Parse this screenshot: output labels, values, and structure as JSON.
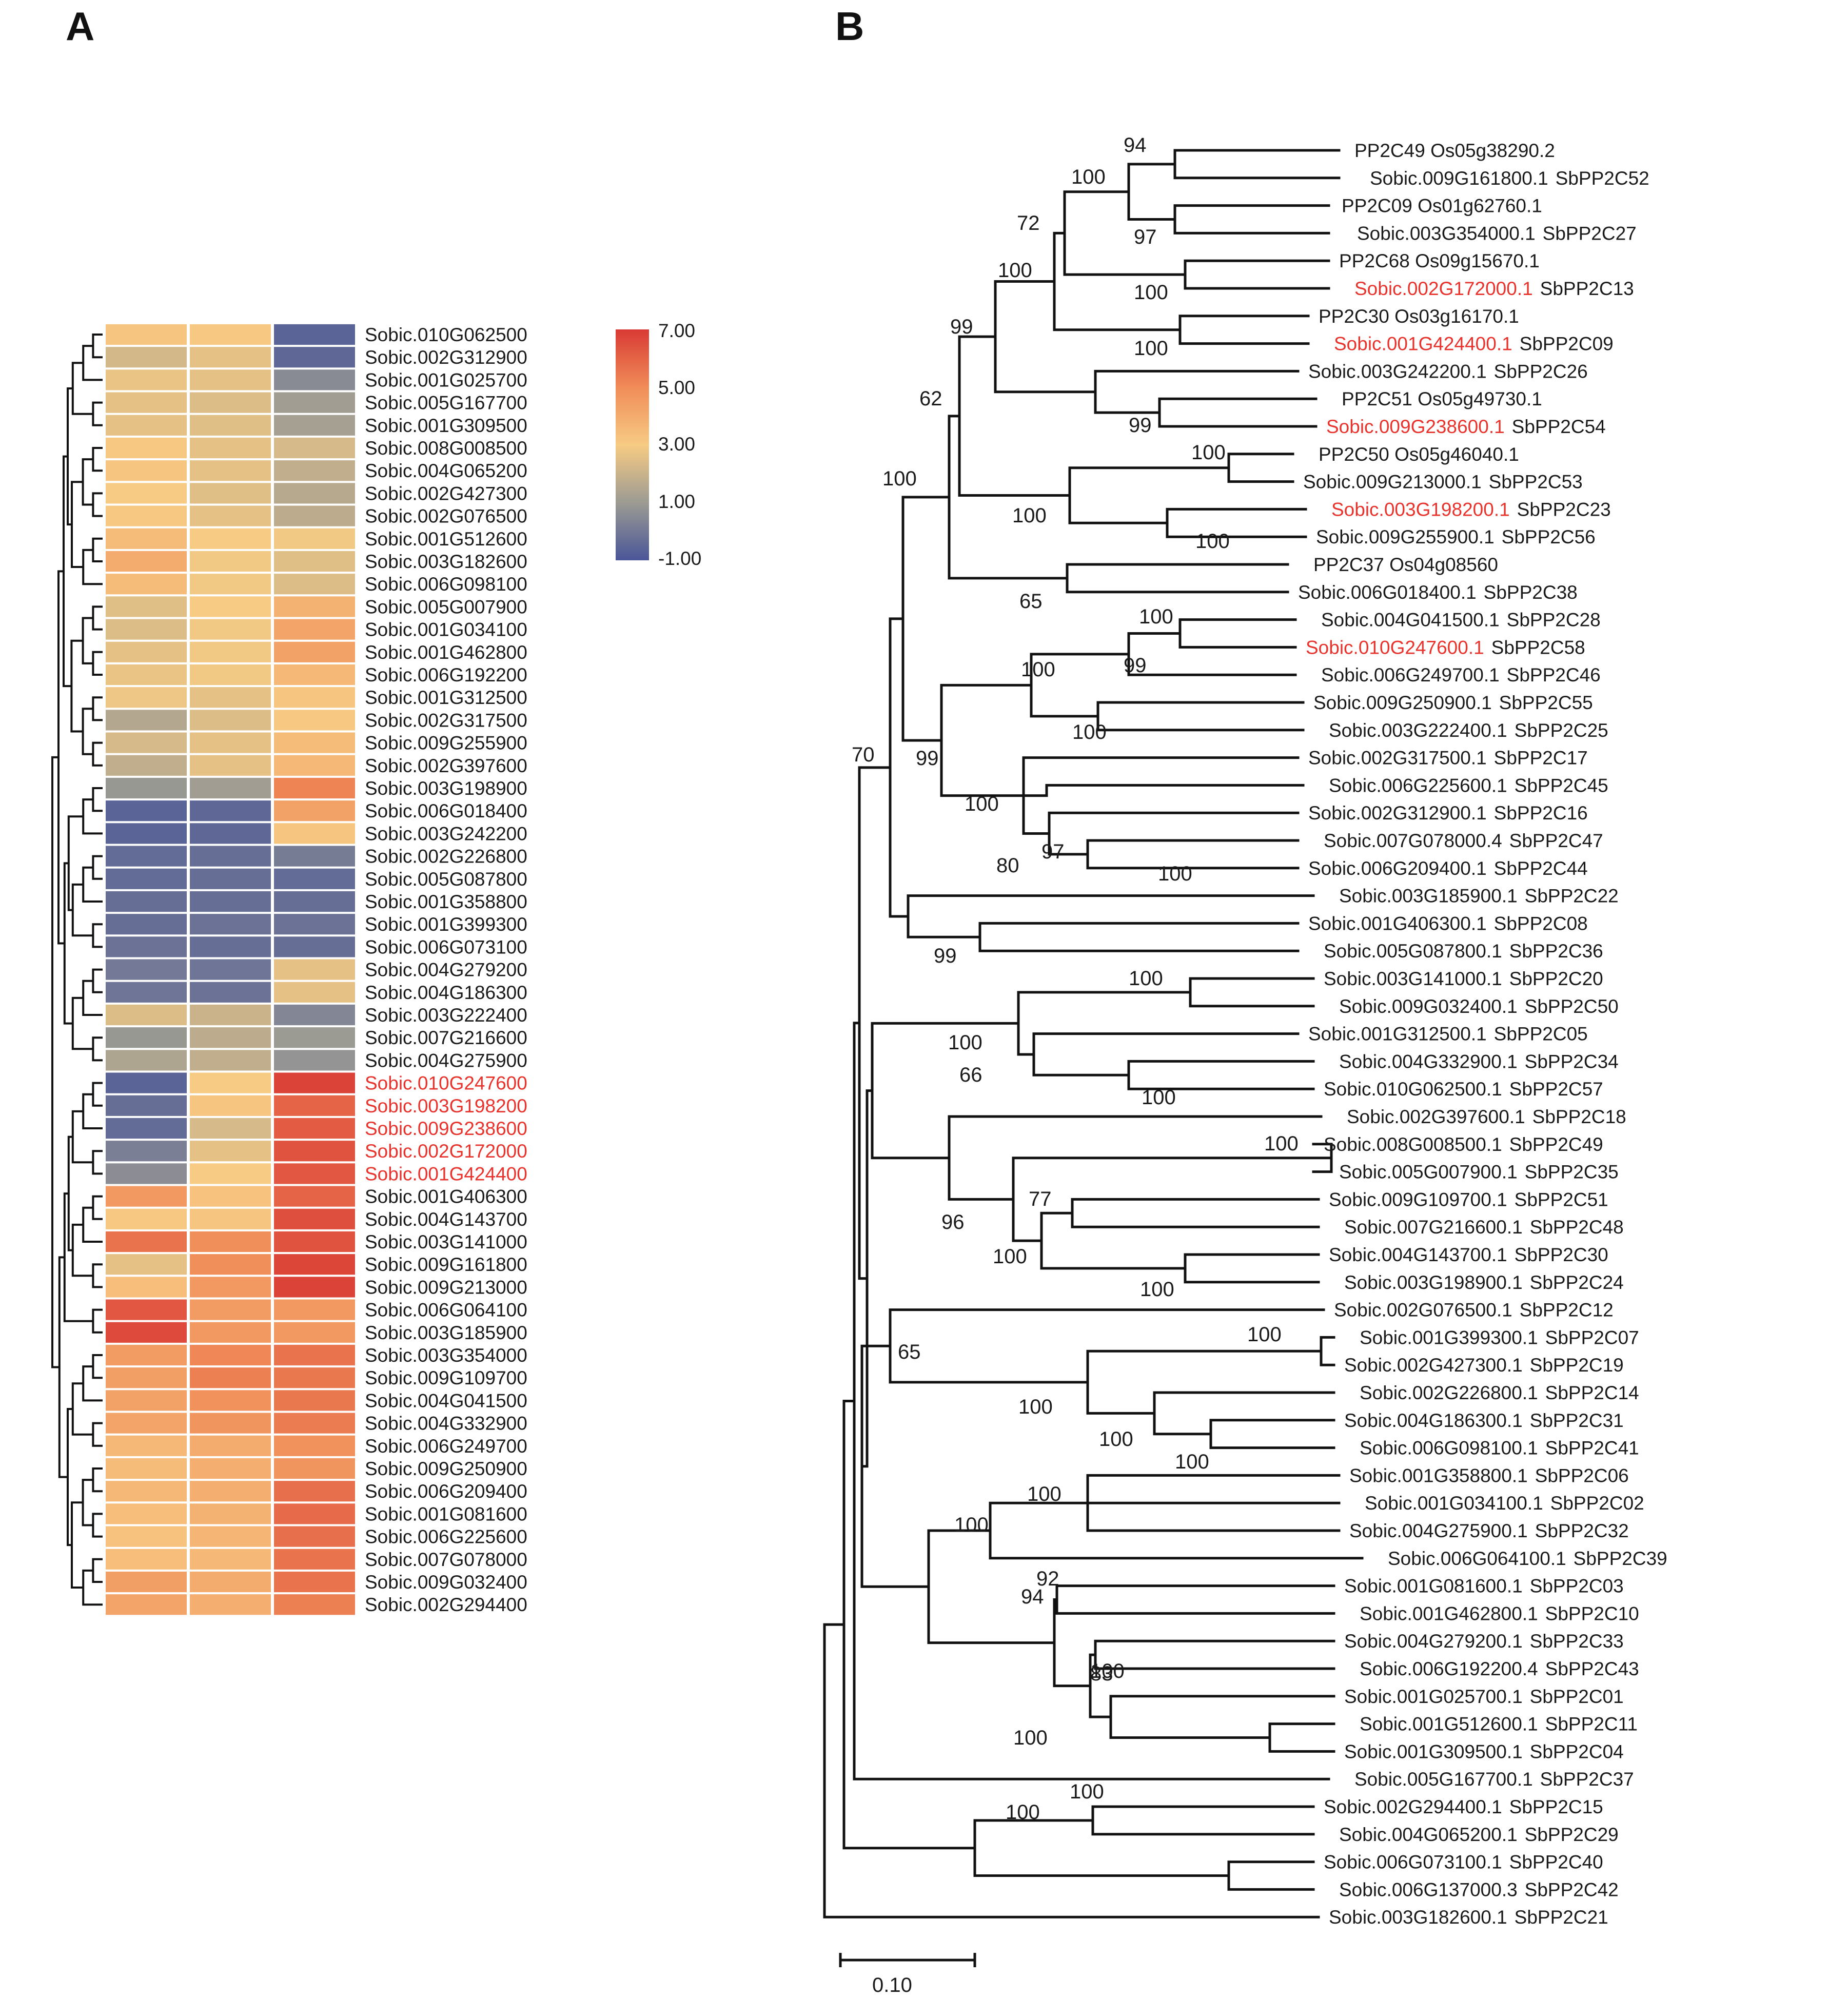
{
  "panels": {
    "a": "A",
    "b": "B"
  },
  "heatmap": {
    "color_scale": {
      "min": -1.0,
      "max": 7.0,
      "ticks": [
        "7.00",
        "5.00",
        "3.00",
        "1.00",
        "-1.00"
      ],
      "stops": [
        {
          "v": -1.0,
          "c": "#4a5698"
        },
        {
          "v": 1.0,
          "c": "#9c9b93"
        },
        {
          "v": 3.0,
          "c": "#f7cb83"
        },
        {
          "v": 5.0,
          "c": "#f08c58"
        },
        {
          "v": 7.0,
          "c": "#d93a34"
        }
      ],
      "legend_colors": [
        "#d93a34",
        "#f08c58",
        "#f7cb83",
        "#9c9b93",
        "#4a5698"
      ]
    },
    "highlight_color": "#e8322c",
    "rows": [
      {
        "gene": "Sobic.010G062500",
        "values": [
          3.2,
          3.1,
          -0.6
        ],
        "hl": false
      },
      {
        "gene": "Sobic.002G312900",
        "values": [
          2.2,
          2.6,
          -0.5
        ],
        "hl": false
      },
      {
        "gene": "Sobic.001G025700",
        "values": [
          2.7,
          2.6,
          0.5
        ],
        "hl": false
      },
      {
        "gene": "Sobic.005G167700",
        "values": [
          2.6,
          2.4,
          1.1
        ],
        "hl": false
      },
      {
        "gene": "Sobic.001G309500",
        "values": [
          2.6,
          2.5,
          1.2
        ],
        "hl": false
      },
      {
        "gene": "Sobic.008G008500",
        "values": [
          3.1,
          2.6,
          2.3
        ],
        "hl": false
      },
      {
        "gene": "Sobic.004G065200",
        "values": [
          3.2,
          2.6,
          1.8
        ],
        "hl": false
      },
      {
        "gene": "Sobic.002G427300",
        "values": [
          3.0,
          2.5,
          1.6
        ],
        "hl": false
      },
      {
        "gene": "Sobic.002G076500",
        "values": [
          3.1,
          2.6,
          1.7
        ],
        "hl": false
      },
      {
        "gene": "Sobic.001G512600",
        "values": [
          3.5,
          3.0,
          2.9
        ],
        "hl": false
      },
      {
        "gene": "Sobic.003G182600",
        "values": [
          4.0,
          2.9,
          2.5
        ],
        "hl": false
      },
      {
        "gene": "Sobic.006G098100",
        "values": [
          3.5,
          2.9,
          2.4
        ],
        "hl": false
      },
      {
        "gene": "Sobic.005G007900",
        "values": [
          2.5,
          3.0,
          3.8
        ],
        "hl": false
      },
      {
        "gene": "Sobic.001G034100",
        "values": [
          2.4,
          2.9,
          4.2
        ],
        "hl": false
      },
      {
        "gene": "Sobic.001G462800",
        "values": [
          2.6,
          2.9,
          4.3
        ],
        "hl": false
      },
      {
        "gene": "Sobic.006G192200",
        "values": [
          2.7,
          2.9,
          3.6
        ],
        "hl": false
      },
      {
        "gene": "Sobic.001G312500",
        "values": [
          2.8,
          2.6,
          3.2
        ],
        "hl": false
      },
      {
        "gene": "Sobic.002G317500",
        "values": [
          1.5,
          2.4,
          3.1
        ],
        "hl": false
      },
      {
        "gene": "Sobic.009G255900",
        "values": [
          2.3,
          2.6,
          3.5
        ],
        "hl": false
      },
      {
        "gene": "Sobic.002G397600",
        "values": [
          1.8,
          2.6,
          3.6
        ],
        "hl": false
      },
      {
        "gene": "Sobic.003G198900",
        "values": [
          0.9,
          1.1,
          5.2
        ],
        "hl": false
      },
      {
        "gene": "Sobic.006G018400",
        "values": [
          -0.6,
          -0.5,
          4.3
        ],
        "hl": false
      },
      {
        "gene": "Sobic.003G242200",
        "values": [
          -0.6,
          -0.5,
          3.2
        ],
        "hl": false
      },
      {
        "gene": "Sobic.002G226800",
        "values": [
          -0.4,
          -0.3,
          0.1
        ],
        "hl": false
      },
      {
        "gene": "Sobic.005G087800",
        "values": [
          -0.4,
          -0.3,
          -0.4
        ],
        "hl": false
      },
      {
        "gene": "Sobic.001G358800",
        "values": [
          -0.3,
          -0.3,
          -0.3
        ],
        "hl": false
      },
      {
        "gene": "Sobic.001G399300",
        "values": [
          -0.3,
          -0.2,
          -0.2
        ],
        "hl": false
      },
      {
        "gene": "Sobic.006G073100",
        "values": [
          -0.2,
          -0.3,
          -0.3
        ],
        "hl": false
      },
      {
        "gene": "Sobic.004G279200",
        "values": [
          0.0,
          -0.1,
          2.6
        ],
        "hl": false
      },
      {
        "gene": "Sobic.004G186300",
        "values": [
          -0.1,
          -0.2,
          2.6
        ],
        "hl": false
      },
      {
        "gene": "Sobic.003G222400",
        "values": [
          2.4,
          2.0,
          0.4
        ],
        "hl": false
      },
      {
        "gene": "Sobic.007G216600",
        "values": [
          0.9,
          1.7,
          1.0
        ],
        "hl": false
      },
      {
        "gene": "Sobic.004G275900",
        "values": [
          1.4,
          1.8,
          0.8
        ],
        "hl": false
      },
      {
        "gene": "Sobic.010G247600",
        "values": [
          -0.6,
          3.0,
          6.8
        ],
        "hl": true
      },
      {
        "gene": "Sobic.003G198200",
        "values": [
          -0.3,
          3.2,
          6.0
        ],
        "hl": true
      },
      {
        "gene": "Sobic.009G238600",
        "values": [
          -0.4,
          2.3,
          6.2
        ],
        "hl": true
      },
      {
        "gene": "Sobic.002G172000",
        "values": [
          0.2,
          2.6,
          6.4
        ],
        "hl": true
      },
      {
        "gene": "Sobic.001G424400",
        "values": [
          0.6,
          3.0,
          6.3
        ],
        "hl": true
      },
      {
        "gene": "Sobic.001G406300",
        "values": [
          4.6,
          3.3,
          6.0
        ],
        "hl": false
      },
      {
        "gene": "Sobic.004G143700",
        "values": [
          3.1,
          3.2,
          6.5
        ],
        "hl": false
      },
      {
        "gene": "Sobic.003G141000",
        "values": [
          5.6,
          4.9,
          6.4
        ],
        "hl": false
      },
      {
        "gene": "Sobic.009G161800",
        "values": [
          2.6,
          4.9,
          6.7
        ],
        "hl": false
      },
      {
        "gene": "Sobic.009G213000",
        "values": [
          3.4,
          4.6,
          6.8
        ],
        "hl": false
      },
      {
        "gene": "Sobic.006G064100",
        "values": [
          6.3,
          4.5,
          4.6
        ],
        "hl": false
      },
      {
        "gene": "Sobic.003G185900",
        "values": [
          6.6,
          4.6,
          4.6
        ],
        "hl": false
      },
      {
        "gene": "Sobic.003G354000",
        "values": [
          4.5,
          5.1,
          5.6
        ],
        "hl": false
      },
      {
        "gene": "Sobic.009G109700",
        "values": [
          4.4,
          5.3,
          5.5
        ],
        "hl": false
      },
      {
        "gene": "Sobic.004G041500",
        "values": [
          4.3,
          4.8,
          5.5
        ],
        "hl": false
      },
      {
        "gene": "Sobic.004G332900",
        "values": [
          4.2,
          4.7,
          5.4
        ],
        "hl": false
      },
      {
        "gene": "Sobic.006G249700",
        "values": [
          3.6,
          4.0,
          4.8
        ],
        "hl": false
      },
      {
        "gene": "Sobic.009G250900",
        "values": [
          3.5,
          3.9,
          4.7
        ],
        "hl": false
      },
      {
        "gene": "Sobic.006G209400",
        "values": [
          3.6,
          3.9,
          5.7
        ],
        "hl": false
      },
      {
        "gene": "Sobic.001G081600",
        "values": [
          3.4,
          3.8,
          5.8
        ],
        "hl": false
      },
      {
        "gene": "Sobic.006G225600",
        "values": [
          3.3,
          3.7,
          5.7
        ],
        "hl": false
      },
      {
        "gene": "Sobic.007G078000",
        "values": [
          3.4,
          3.6,
          5.6
        ],
        "hl": false
      },
      {
        "gene": "Sobic.009G032400",
        "values": [
          4.4,
          4.0,
          5.6
        ],
        "hl": false
      },
      {
        "gene": "Sobic.002G294400",
        "values": [
          4.2,
          3.9,
          5.3
        ],
        "hl": false
      }
    ]
  },
  "tree": {
    "highlight_color": "#e8322c",
    "leaves": [
      {
        "id": "PP2C49 Os05g38290.2",
        "sb": "",
        "hl": false
      },
      {
        "id": "Sobic.009G161800.1",
        "sb": "SbPP2C52",
        "hl": false
      },
      {
        "id": "PP2C09 Os01g62760.1",
        "sb": "",
        "hl": false
      },
      {
        "id": "Sobic.003G354000.1",
        "sb": "SbPP2C27",
        "hl": false
      },
      {
        "id": "PP2C68 Os09g15670.1",
        "sb": "",
        "hl": false
      },
      {
        "id": "Sobic.002G172000.1",
        "sb": "SbPP2C13",
        "hl": true
      },
      {
        "id": "PP2C30 Os03g16170.1",
        "sb": "",
        "hl": false
      },
      {
        "id": "Sobic.001G424400.1",
        "sb": "SbPP2C09",
        "hl": true
      },
      {
        "id": "Sobic.003G242200.1",
        "sb": "SbPP2C26",
        "hl": false
      },
      {
        "id": "PP2C51 Os05g49730.1",
        "sb": "",
        "hl": false
      },
      {
        "id": "Sobic.009G238600.1",
        "sb": "SbPP2C54",
        "hl": true
      },
      {
        "id": "PP2C50 Os05g46040.1",
        "sb": "",
        "hl": false
      },
      {
        "id": "Sobic.009G213000.1",
        "sb": "SbPP2C53",
        "hl": false
      },
      {
        "id": "Sobic.003G198200.1",
        "sb": "SbPP2C23",
        "hl": true
      },
      {
        "id": "Sobic.009G255900.1",
        "sb": "SbPP2C56",
        "hl": false
      },
      {
        "id": "PP2C37 Os04g08560",
        "sb": "",
        "hl": false
      },
      {
        "id": "Sobic.006G018400.1",
        "sb": "SbPP2C38",
        "hl": false
      },
      {
        "id": "Sobic.004G041500.1",
        "sb": "SbPP2C28",
        "hl": false
      },
      {
        "id": "Sobic.010G247600.1",
        "sb": "SbPP2C58",
        "hl": true
      },
      {
        "id": "Sobic.006G249700.1",
        "sb": "SbPP2C46",
        "hl": false
      },
      {
        "id": "Sobic.009G250900.1",
        "sb": "SbPP2C55",
        "hl": false
      },
      {
        "id": "Sobic.003G222400.1",
        "sb": "SbPP2C25",
        "hl": false
      },
      {
        "id": "Sobic.002G317500.1",
        "sb": "SbPP2C17",
        "hl": false
      },
      {
        "id": "Sobic.006G225600.1",
        "sb": "SbPP2C45",
        "hl": false
      },
      {
        "id": "Sobic.002G312900.1",
        "sb": "SbPP2C16",
        "hl": false
      },
      {
        "id": "Sobic.007G078000.4",
        "sb": "SbPP2C47",
        "hl": false
      },
      {
        "id": "Sobic.006G209400.1",
        "sb": "SbPP2C44",
        "hl": false
      },
      {
        "id": "Sobic.003G185900.1",
        "sb": "SbPP2C22",
        "hl": false
      },
      {
        "id": "Sobic.001G406300.1",
        "sb": "SbPP2C08",
        "hl": false
      },
      {
        "id": "Sobic.005G087800.1",
        "sb": "SbPP2C36",
        "hl": false
      },
      {
        "id": "Sobic.003G141000.1",
        "sb": "SbPP2C20",
        "hl": false
      },
      {
        "id": "Sobic.009G032400.1",
        "sb": "SbPP2C50",
        "hl": false
      },
      {
        "id": "Sobic.001G312500.1",
        "sb": "SbPP2C05",
        "hl": false
      },
      {
        "id": "Sobic.004G332900.1",
        "sb": "SbPP2C34",
        "hl": false
      },
      {
        "id": "Sobic.010G062500.1",
        "sb": "SbPP2C57",
        "hl": false
      },
      {
        "id": "Sobic.002G397600.1",
        "sb": "SbPP2C18",
        "hl": false
      },
      {
        "id": "Sobic.008G008500.1",
        "sb": "SbPP2C49",
        "hl": false
      },
      {
        "id": "Sobic.005G007900.1",
        "sb": "SbPP2C35",
        "hl": false
      },
      {
        "id": "Sobic.009G109700.1",
        "sb": "SbPP2C51",
        "hl": false
      },
      {
        "id": "Sobic.007G216600.1",
        "sb": "SbPP2C48",
        "hl": false
      },
      {
        "id": "Sobic.004G143700.1",
        "sb": "SbPP2C30",
        "hl": false
      },
      {
        "id": "Sobic.003G198900.1",
        "sb": "SbPP2C24",
        "hl": false
      },
      {
        "id": "Sobic.002G076500.1",
        "sb": "SbPP2C12",
        "hl": false
      },
      {
        "id": "Sobic.001G399300.1",
        "sb": "SbPP2C07",
        "hl": false
      },
      {
        "id": "Sobic.002G427300.1",
        "sb": "SbPP2C19",
        "hl": false
      },
      {
        "id": "Sobic.002G226800.1",
        "sb": "SbPP2C14",
        "hl": false
      },
      {
        "id": "Sobic.004G186300.1",
        "sb": "SbPP2C31",
        "hl": false
      },
      {
        "id": "Sobic.006G098100.1",
        "sb": "SbPP2C41",
        "hl": false
      },
      {
        "id": "Sobic.001G358800.1",
        "sb": "SbPP2C06",
        "hl": false
      },
      {
        "id": "Sobic.001G034100.1",
        "sb": "SbPP2C02",
        "hl": false
      },
      {
        "id": "Sobic.004G275900.1",
        "sb": "SbPP2C32",
        "hl": false
      },
      {
        "id": "Sobic.006G064100.1",
        "sb": "SbPP2C39",
        "hl": false
      },
      {
        "id": "Sobic.001G081600.1",
        "sb": "SbPP2C03",
        "hl": false
      },
      {
        "id": "Sobic.001G462800.1",
        "sb": "SbPP2C10",
        "hl": false
      },
      {
        "id": "Sobic.004G279200.1",
        "sb": "SbPP2C33",
        "hl": false
      },
      {
        "id": "Sobic.006G192200.4",
        "sb": "SbPP2C43",
        "hl": false
      },
      {
        "id": "Sobic.001G025700.1",
        "sb": "SbPP2C01",
        "hl": false
      },
      {
        "id": "Sobic.001G512600.1",
        "sb": "SbPP2C11",
        "hl": false
      },
      {
        "id": "Sobic.001G309500.1",
        "sb": "SbPP2C04",
        "hl": false
      },
      {
        "id": "Sobic.005G167700.1",
        "sb": "SbPP2C37",
        "hl": false
      },
      {
        "id": "Sobic.002G294400.1",
        "sb": "SbPP2C15",
        "hl": false
      },
      {
        "id": "Sobic.004G065200.1",
        "sb": "SbPP2C29",
        "hl": false
      },
      {
        "id": "Sobic.006G073100.1",
        "sb": "SbPP2C40",
        "hl": false
      },
      {
        "id": "Sobic.006G137000.3",
        "sb": "SbPP2C42",
        "hl": false
      },
      {
        "id": "Sobic.003G182600.1",
        "sb": "SbPP2C21",
        "hl": false
      }
    ],
    "bootstrap": [
      "94",
      "100",
      "97",
      "72",
      "100",
      "100",
      "99",
      "100",
      "99",
      "62",
      "100",
      "100",
      "100",
      "100",
      "65",
      "100",
      "99",
      "100",
      "100",
      "100",
      "80",
      "97",
      "100",
      "70",
      "99",
      "99",
      "100",
      "100",
      "66",
      "100",
      "100",
      "77",
      "96",
      "100",
      "100",
      "65",
      "100",
      "100",
      "100",
      "100",
      "100",
      "92",
      "100",
      "94",
      "83",
      "100",
      "100",
      "100",
      "100"
    ],
    "scale_bar": {
      "label": "0.10"
    }
  }
}
